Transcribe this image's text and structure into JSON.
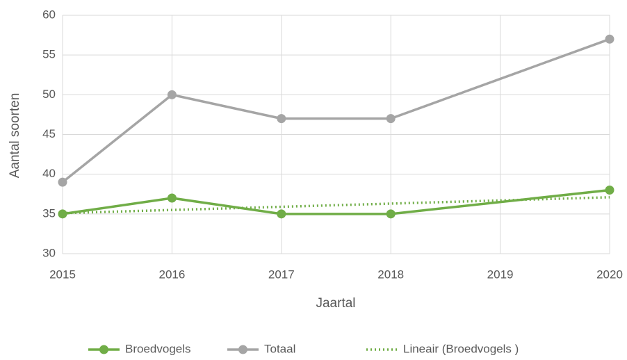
{
  "chart_data": {
    "type": "line",
    "x_label": "Jaartal",
    "y_label": "Aantal soorten",
    "xlim": [
      2015,
      2020
    ],
    "xticks": [
      2015,
      2016,
      2017,
      2018,
      2019,
      2020
    ],
    "ylim": [
      30,
      60
    ],
    "yticks": [
      30,
      35,
      40,
      45,
      50,
      55,
      60
    ],
    "grid": true,
    "legend": "bottom",
    "series": [
      {
        "name": "Broedvogels",
        "color": "#70ad47",
        "markers": true,
        "dash": "solid",
        "x": [
          2015,
          2016,
          2017,
          2018,
          2020
        ],
        "values": [
          35,
          37,
          35,
          35,
          38
        ]
      },
      {
        "name": "Totaal",
        "color": "#a5a5a5",
        "markers": true,
        "dash": "solid",
        "x": [
          2015,
          2016,
          2017,
          2018,
          2020
        ],
        "values": [
          39,
          50,
          47,
          47,
          57
        ]
      },
      {
        "name": "Lineair (Broedvogels )",
        "color": "#70ad47",
        "markers": false,
        "dash": "dotted",
        "x": [
          2015,
          2020
        ],
        "values": [
          35.1,
          37.1
        ]
      }
    ]
  }
}
